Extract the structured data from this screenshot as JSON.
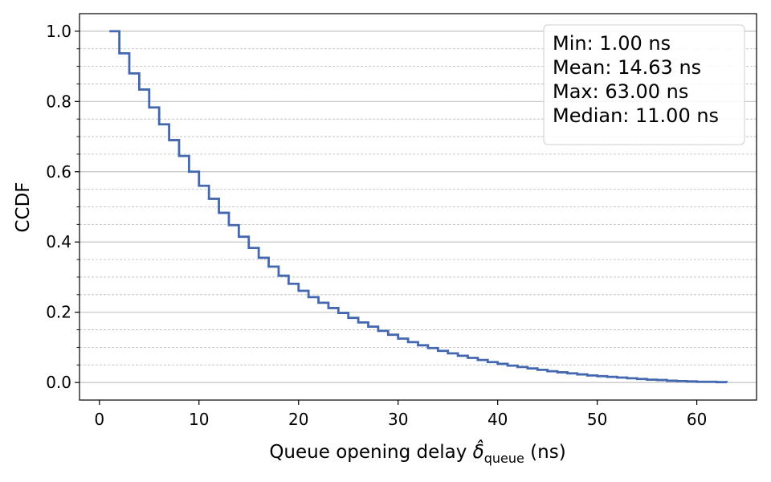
{
  "chart_data": {
    "type": "line",
    "title": "",
    "xlabel": {
      "prefix": "Queue opening delay ",
      "symbol": "δ̂",
      "subscript": "queue",
      "suffix": " (ns)"
    },
    "ylabel": "CCDF",
    "xlim": [
      -2,
      66
    ],
    "ylim": [
      -0.05,
      1.05
    ],
    "x_ticks": [
      0,
      10,
      20,
      30,
      40,
      50,
      60
    ],
    "x_tick_labels": [
      "0",
      "10",
      "20",
      "30",
      "40",
      "50",
      "60"
    ],
    "y_ticks": [
      0.0,
      0.2,
      0.4,
      0.6,
      0.8,
      1.0
    ],
    "y_tick_labels": [
      "0.0",
      "0.2",
      "0.4",
      "0.6",
      "0.8",
      "1.0"
    ],
    "y_minor_ticks": [
      0.05,
      0.1,
      0.15,
      0.25,
      0.3,
      0.35,
      0.45,
      0.5,
      0.55,
      0.65,
      0.7,
      0.75,
      0.85,
      0.9,
      0.95
    ],
    "grid": true,
    "legend_placement": "top-right",
    "step": "post",
    "series": [
      {
        "color": "#4468b0",
        "x": [
          1,
          2,
          3,
          4,
          5,
          6,
          7,
          8,
          9,
          10,
          11,
          12,
          13,
          14,
          15,
          16,
          17,
          18,
          19,
          20,
          21,
          22,
          23,
          24,
          25,
          26,
          27,
          28,
          29,
          30,
          31,
          32,
          33,
          34,
          35,
          36,
          37,
          38,
          39,
          40,
          41,
          42,
          43,
          44,
          45,
          46,
          47,
          48,
          49,
          50,
          51,
          52,
          53,
          54,
          55,
          56,
          57,
          58,
          59,
          60,
          61,
          62,
          63
        ],
        "y": [
          1.0,
          0.937,
          0.88,
          0.834,
          0.783,
          0.735,
          0.69,
          0.645,
          0.6,
          0.56,
          0.523,
          0.483,
          0.448,
          0.415,
          0.383,
          0.355,
          0.33,
          0.304,
          0.281,
          0.261,
          0.243,
          0.227,
          0.212,
          0.198,
          0.184,
          0.171,
          0.159,
          0.147,
          0.136,
          0.125,
          0.115,
          0.106,
          0.098,
          0.09,
          0.083,
          0.076,
          0.07,
          0.064,
          0.058,
          0.053,
          0.048,
          0.044,
          0.04,
          0.036,
          0.032,
          0.029,
          0.026,
          0.023,
          0.02,
          0.018,
          0.016,
          0.014,
          0.012,
          0.01,
          0.008,
          0.007,
          0.005,
          0.004,
          0.003,
          0.002,
          0.002,
          0.001,
          0.0
        ]
      }
    ]
  },
  "stats_box": {
    "lines": [
      "Min: 1.00 ns",
      "Mean: 14.63 ns",
      "Max: 63.00 ns",
      "Median: 11.00 ns"
    ]
  }
}
